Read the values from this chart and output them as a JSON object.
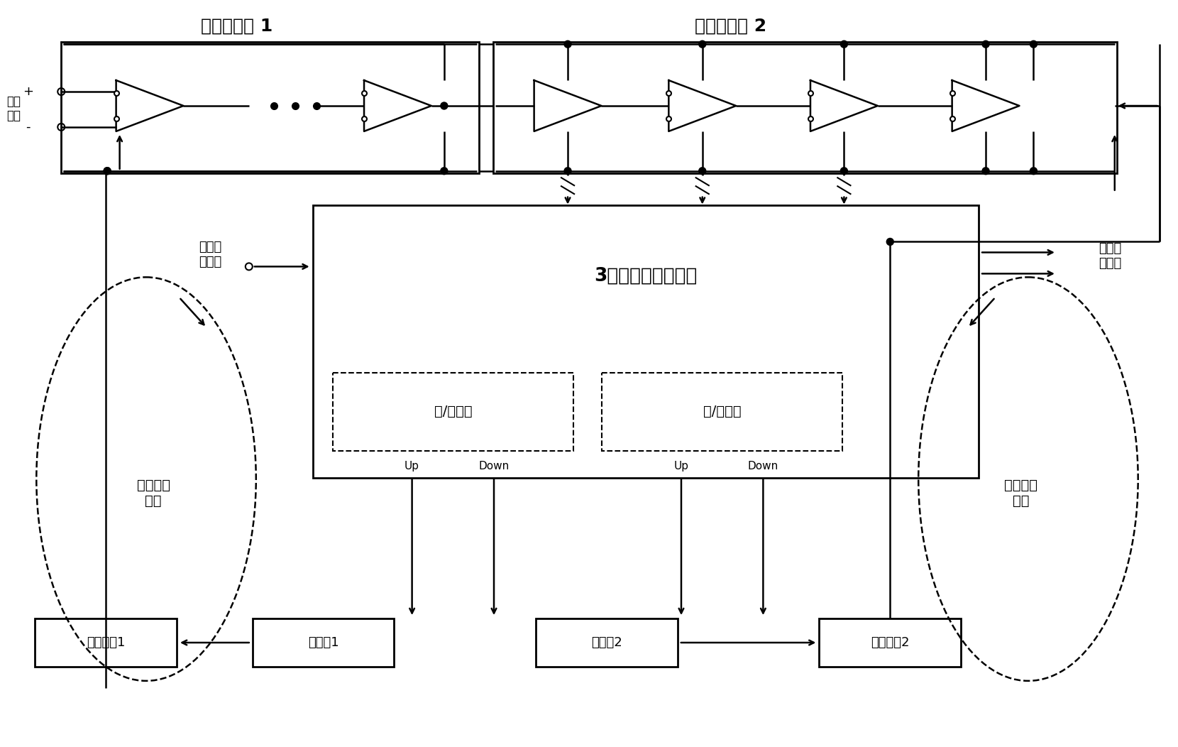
{
  "bg": "#ffffff",
  "lc": "#000000",
  "title1": "压控延迟线 1",
  "title2": "压控延迟线 2",
  "ref_clock": "参考\n时钟",
  "data_in": "数据时\n钟输入",
  "data_out": "数据时\n钟输出",
  "phase_loop": "相位锁定\n环路",
  "period_loop": "周期锁定\n环路",
  "triple_sample": "3重采样及逻辑判断",
  "late_early": "迟/早判断",
  "wide_narrow": "宽/窄判断",
  "filter1": "滤波回路1",
  "filter2": "滤波回路2",
  "pump1": "电流泵1",
  "pump2": "电流泵2",
  "up": "Up",
  "down": "Down",
  "plus": "+",
  "minus": "-"
}
